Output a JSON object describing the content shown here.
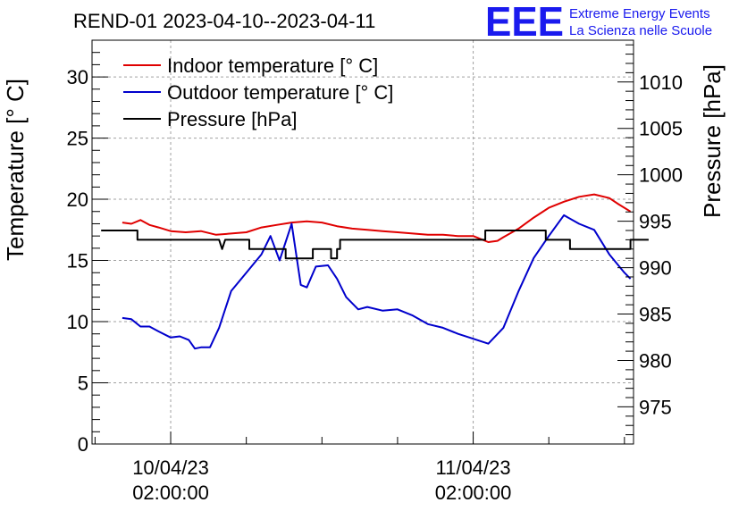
{
  "chart_data": {
    "type": "line",
    "title": "REND-01 2023-04-10--2023-04-11",
    "ylabel": "Temperature [° C]",
    "y2label": "Pressure [hPa]",
    "ylim": [
      0,
      33
    ],
    "y2lim": [
      971,
      1014.5
    ],
    "xlim": [
      -0.26,
      1.53
    ],
    "yticks": [
      0,
      5,
      10,
      15,
      20,
      25,
      30
    ],
    "y2ticks": [
      975,
      980,
      985,
      990,
      995,
      1000,
      1005,
      1010
    ],
    "xticks": [
      {
        "pos": 0,
        "date": "10/04/23",
        "time": "02:00:00"
      },
      {
        "pos": 1,
        "date": "11/04/23",
        "time": "02:00:00"
      }
    ],
    "legend_position": "top-left",
    "series": [
      {
        "name": "Indoor temperature [° C]",
        "color": "#e00000",
        "axis": "left",
        "x": [
          -0.16,
          -0.13,
          -0.1,
          -0.07,
          -0.04,
          0.0,
          0.05,
          0.1,
          0.15,
          0.2,
          0.25,
          0.3,
          0.35,
          0.4,
          0.45,
          0.5,
          0.55,
          0.6,
          0.65,
          0.7,
          0.75,
          0.8,
          0.85,
          0.9,
          0.95,
          1.0,
          1.05,
          1.08,
          1.1,
          1.15,
          1.2,
          1.25,
          1.3,
          1.35,
          1.4,
          1.45,
          1.48,
          1.5,
          1.52
        ],
        "y": [
          18.1,
          18.0,
          18.3,
          17.9,
          17.7,
          17.4,
          17.3,
          17.4,
          17.1,
          17.2,
          17.3,
          17.7,
          17.9,
          18.1,
          18.2,
          18.1,
          17.8,
          17.6,
          17.5,
          17.4,
          17.3,
          17.2,
          17.1,
          17.1,
          17.0,
          17.0,
          16.5,
          16.6,
          16.9,
          17.6,
          18.5,
          19.3,
          19.8,
          20.2,
          20.4,
          20.1,
          19.6,
          19.3,
          19.0
        ]
      },
      {
        "name": "Outdoor temperature [° C]",
        "color": "#0000cc",
        "axis": "left",
        "x": [
          -0.16,
          -0.13,
          -0.1,
          -0.07,
          -0.04,
          0.0,
          0.03,
          0.06,
          0.08,
          0.1,
          0.13,
          0.16,
          0.2,
          0.25,
          0.3,
          0.33,
          0.36,
          0.4,
          0.43,
          0.45,
          0.48,
          0.52,
          0.55,
          0.58,
          0.62,
          0.65,
          0.7,
          0.75,
          0.8,
          0.85,
          0.9,
          0.95,
          1.0,
          1.05,
          1.1,
          1.15,
          1.2,
          1.25,
          1.3,
          1.35,
          1.4,
          1.45,
          1.5,
          1.52
        ],
        "y": [
          10.3,
          10.2,
          9.6,
          9.6,
          9.2,
          8.7,
          8.8,
          8.5,
          7.8,
          7.9,
          7.9,
          9.5,
          12.5,
          14.0,
          15.5,
          17.0,
          15.0,
          18.0,
          13.0,
          12.8,
          14.5,
          14.6,
          13.5,
          12.0,
          11.0,
          11.2,
          10.9,
          11.0,
          10.5,
          9.8,
          9.5,
          9.0,
          8.6,
          8.2,
          9.5,
          12.5,
          15.2,
          17.0,
          18.7,
          18.0,
          17.5,
          15.5,
          14.0,
          13.5
        ]
      },
      {
        "name": "Pressure [hPa]",
        "color": "#000000",
        "axis": "right",
        "x": [
          -0.23,
          -0.11,
          -0.11,
          0.16,
          0.17,
          0.18,
          0.19,
          0.26,
          0.26,
          0.38,
          0.38,
          0.47,
          0.47,
          0.53,
          0.53,
          0.55,
          0.55,
          0.56,
          0.56,
          0.75,
          0.75,
          1.04,
          1.04,
          1.08,
          1.08,
          1.24,
          1.24,
          1.32,
          1.32,
          1.52,
          1.52,
          1.58
        ],
        "y": [
          994,
          994,
          993,
          993,
          992,
          993,
          993,
          993,
          992,
          992,
          991,
          991,
          992,
          992,
          991,
          991,
          992,
          992,
          993,
          993,
          993,
          993,
          994,
          994,
          994,
          994,
          993,
          993,
          992,
          992,
          993,
          993
        ]
      }
    ]
  },
  "logo": {
    "mark": "EEE",
    "line1": "Extreme Energy Events",
    "line2": "La Scienza nelle Scuole",
    "color": "#1a1aee"
  }
}
